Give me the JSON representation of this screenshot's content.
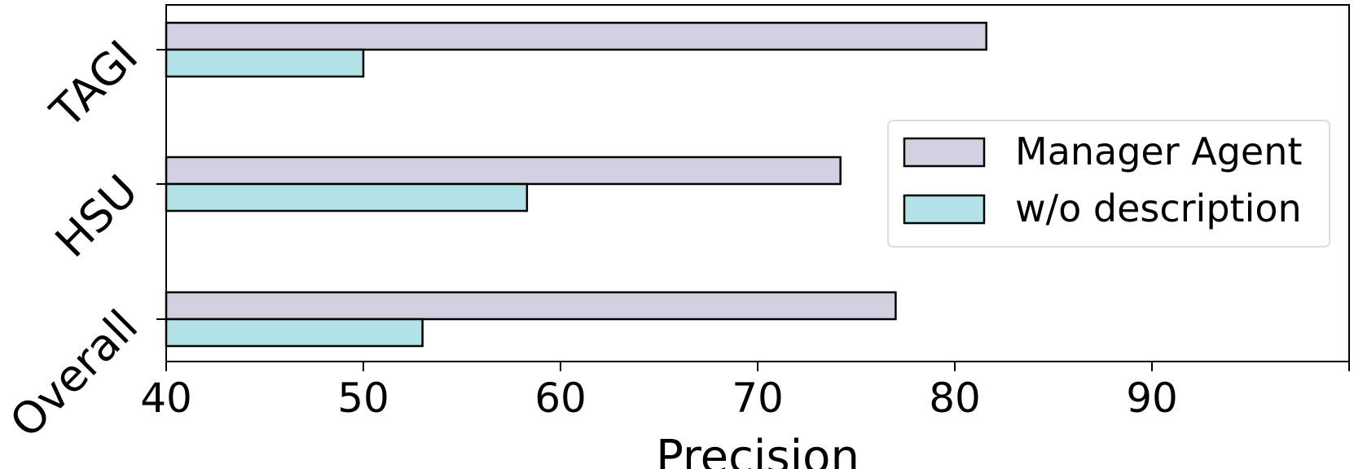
{
  "chart_data": {
    "type": "bar",
    "orientation": "horizontal",
    "categories": [
      "TAGI",
      "HSU",
      "Overall"
    ],
    "series": [
      {
        "name": "Manager Agent",
        "values": [
          81.6,
          74.2,
          77.0
        ],
        "color": "#d2cfe1"
      },
      {
        "name": "w/o description",
        "values": [
          50.0,
          58.3,
          53.0
        ],
        "color": "#b3e2e6"
      }
    ],
    "xlabel": "Precision",
    "ylabel": "",
    "xlim": [
      40,
      100
    ],
    "xticks": [
      40,
      50,
      60,
      70,
      80,
      90
    ],
    "xtick_labels": [
      "40",
      "50",
      "60",
      "70",
      "80",
      "90"
    ],
    "grid": false,
    "legend_position": "right"
  }
}
